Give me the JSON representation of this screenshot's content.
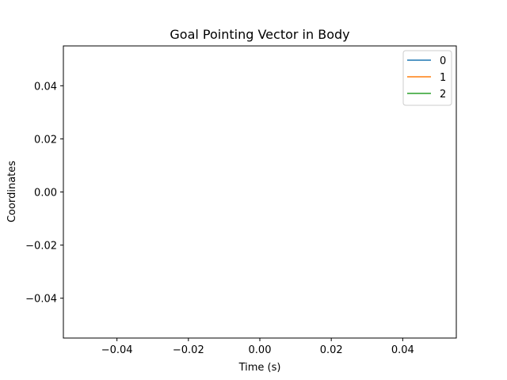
{
  "chart_data": {
    "type": "line",
    "title": "Goal Pointing Vector in Body",
    "xlabel": "Time (s)",
    "ylabel": "Coordinates",
    "xlim": [
      -0.055,
      0.055
    ],
    "ylim": [
      -0.055,
      0.055
    ],
    "xticks": [
      -0.04,
      -0.02,
      0.0,
      0.02,
      0.04
    ],
    "xtick_labels": [
      "−0.04",
      "−0.02",
      "0.00",
      "0.02",
      "0.04"
    ],
    "yticks": [
      0.04,
      0.02,
      0.0,
      -0.02,
      -0.04
    ],
    "ytick_labels": [
      "0.04",
      "0.02",
      "0.00",
      "−0.02",
      "−0.04"
    ],
    "grid": false,
    "legend_position": "top-right",
    "series": [
      {
        "name": "0",
        "color": "#1f77b4",
        "x": [],
        "y": []
      },
      {
        "name": "1",
        "color": "#ff7f0e",
        "x": [],
        "y": []
      },
      {
        "name": "2",
        "color": "#2ca02c",
        "x": [],
        "y": []
      }
    ]
  }
}
